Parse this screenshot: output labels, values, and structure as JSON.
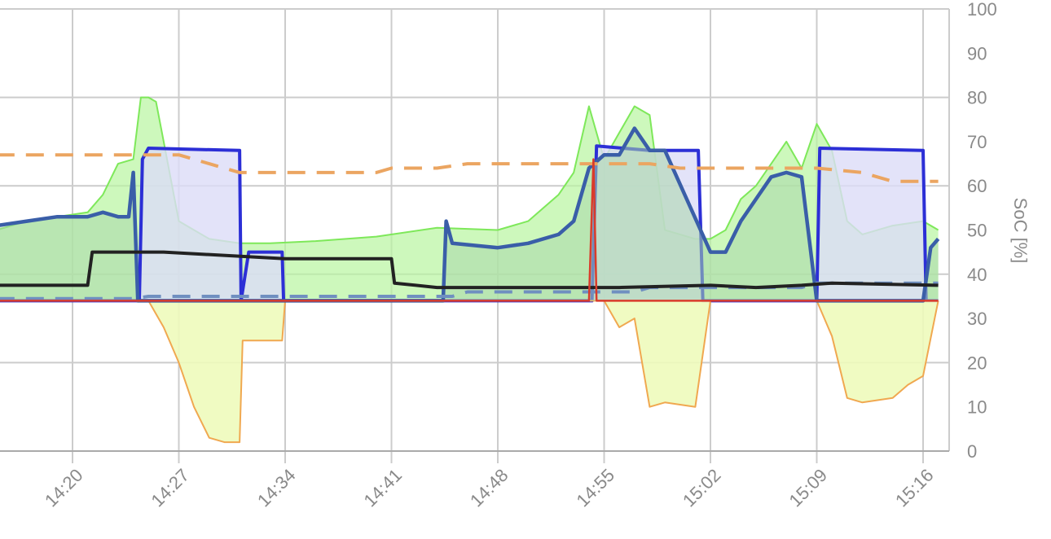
{
  "chart_data": {
    "type": "line",
    "title": "",
    "xlabel": "",
    "ylabel": "SoC [%]",
    "ylim": [
      0,
      100
    ],
    "y_ticks": [
      "0",
      "10",
      "20",
      "30",
      "40",
      "50",
      "60",
      "70",
      "80",
      "90",
      "100"
    ],
    "x_ticks": [
      "14:20",
      "14:27",
      "14:34",
      "14:41",
      "14:48",
      "14:55",
      "15:02",
      "15:09",
      "15:16"
    ],
    "x_range": [
      "14:15:15",
      "15:17:45"
    ],
    "grid": true,
    "legend": "none",
    "y_axis_position": "right",
    "colors": {
      "grid": "#cccccc",
      "axis_text": "#8a8a8a",
      "green_fill": "#b8f5a0",
      "green_line": "#7ee85a",
      "blue_fill": "#dcdcf7",
      "blue_line": "#2c2fd6",
      "steelblue_line": "#3a5ea8",
      "dark_green_fill": "#a9d7a9",
      "black_line": "#222222",
      "orange_dashed": "#eba561",
      "blue_dashed": "#6f8fc0",
      "yellow_fill": "#eefbbb",
      "orange_line": "#f0a850",
      "red_line": "#d93b2b",
      "olive_line": "#b8b25a"
    },
    "series": [
      {
        "name": "green-area",
        "style": "area",
        "x": [
          "14:15",
          "14:17",
          "14:19",
          "14:21",
          "14:22",
          "14:23",
          "14:24",
          "14:24.5",
          "14:25",
          "14:25.5",
          "14:26",
          "14:27",
          "14:29",
          "14:31",
          "14:33",
          "14:36",
          "14:40",
          "14:44",
          "14:48",
          "14:50",
          "14:52",
          "14:53",
          "14:54",
          "14:55",
          "14:56",
          "14:57",
          "14:58",
          "14:59",
          "15:00",
          "15:01",
          "15:02",
          "15:03",
          "15:04",
          "15:05",
          "15:06",
          "15:07",
          "15:08",
          "15:09",
          "15:10",
          "15:11",
          "15:12",
          "15:14",
          "15:16",
          "15:17"
        ],
        "values": [
          50,
          52,
          53,
          54,
          58,
          65,
          66,
          80,
          80,
          79,
          70,
          52,
          48,
          47,
          47,
          47.5,
          48.5,
          50.5,
          50,
          52,
          58,
          63,
          78,
          66,
          72,
          78,
          76,
          50,
          49,
          48,
          48,
          50,
          57,
          60,
          65,
          70,
          64,
          74,
          68,
          52,
          49,
          51,
          52,
          50
        ]
      },
      {
        "name": "blue-area",
        "style": "area",
        "x": [
          "14:15",
          "14:24.4",
          "14:24.6",
          "14:25",
          "14:31",
          "14:31.1",
          "14:31.6",
          "14:33.8",
          "14:33.9",
          "14:54.2",
          "14:54.5",
          "14:58",
          "15:01.2",
          "15:01.5",
          "15:09",
          "15:09.2",
          "15:16",
          "15:16.2",
          "15:17"
        ],
        "values": [
          34,
          34,
          66,
          68.5,
          68,
          34,
          45,
          45,
          34,
          34,
          69,
          68,
          68,
          34,
          34,
          68.5,
          68,
          34,
          34
        ]
      },
      {
        "name": "steelblue-line",
        "style": "line",
        "x": [
          "14:15",
          "14:17",
          "14:19",
          "14:21",
          "14:22",
          "14:23",
          "14:23.7",
          "14:24",
          "14:24.3",
          "14:30",
          "14:31.5",
          "14:34",
          "14:44.4",
          "14:44.6",
          "14:45",
          "14:48",
          "14:50",
          "14:52",
          "14:53",
          "14:54",
          "14:55",
          "14:56",
          "14:57",
          "14:58",
          "14:59",
          "15:02",
          "15:03",
          "15:04",
          "15:05",
          "15:06",
          "15:07",
          "15:08",
          "15:09",
          "15:10",
          "15:15",
          "15:16",
          "15:16.5",
          "15:17"
        ],
        "values": [
          51,
          52,
          53,
          53,
          54,
          53,
          53,
          63,
          34,
          34,
          34,
          34,
          34,
          52,
          47,
          46,
          47,
          49,
          52,
          64,
          67,
          67,
          73,
          68,
          68,
          45,
          45,
          52,
          57,
          62,
          63,
          62,
          34,
          34,
          34,
          34,
          46,
          48
        ]
      },
      {
        "name": "black-line",
        "style": "line",
        "x": [
          "14:15",
          "14:21",
          "14:21.3",
          "14:25",
          "14:26",
          "14:34",
          "14:41",
          "14:41.2",
          "14:44",
          "14:48",
          "14:54",
          "14:55",
          "14:56",
          "15:02",
          "15:05",
          "15:08",
          "15:10",
          "15:17"
        ],
        "values": [
          37.5,
          37.5,
          45,
          45,
          45,
          43.5,
          43.5,
          38,
          37,
          37,
          37,
          37,
          37,
          37.5,
          37,
          37.5,
          38,
          37.5
        ]
      },
      {
        "name": "orange-dashed",
        "style": "dashed",
        "x": [
          "14:15",
          "14:25",
          "14:27",
          "14:28",
          "14:29",
          "14:30",
          "14:31",
          "14:40",
          "14:41",
          "14:44",
          "14:46",
          "14:55",
          "14:58",
          "15:00",
          "15:02",
          "15:09",
          "15:12",
          "15:14",
          "15:17"
        ],
        "values": [
          67,
          67,
          67,
          66,
          65,
          64,
          63,
          63,
          64,
          64,
          65,
          65,
          65,
          64,
          64,
          64,
          63,
          61,
          61
        ]
      },
      {
        "name": "blue-dashed",
        "style": "dashed",
        "x": [
          "14:15",
          "14:24",
          "14:25",
          "14:45",
          "14:46",
          "14:57",
          "14:58",
          "15:08",
          "15:09",
          "15:17"
        ],
        "values": [
          34.5,
          34.5,
          35,
          35,
          36,
          36,
          37,
          37,
          38,
          38
        ]
      },
      {
        "name": "yellow-orange-area",
        "style": "area",
        "x": [
          "14:15",
          "14:25",
          "14:26",
          "14:27",
          "14:28",
          "14:29",
          "14:30",
          "14:31",
          "14:31.2",
          "14:33.8",
          "14:34",
          "14:44",
          "14:55",
          "14:56",
          "14:57",
          "14:58",
          "14:59",
          "15:01",
          "15:02",
          "15:09",
          "15:10",
          "15:11",
          "15:12",
          "15:14",
          "15:15",
          "15:16",
          "15:17"
        ],
        "values": [
          34,
          34,
          28,
          20,
          10,
          3,
          2,
          2,
          25,
          25,
          34,
          34,
          34,
          28,
          30,
          10,
          11,
          10,
          34,
          34,
          26,
          12,
          11,
          12,
          15,
          17,
          34
        ]
      },
      {
        "name": "red-line",
        "style": "line",
        "x": [
          "14:15",
          "14:54",
          "14:54.3",
          "14:54.5",
          "14:55",
          "15:17"
        ],
        "values": [
          34,
          34,
          66,
          34,
          34,
          34
        ]
      }
    ]
  },
  "axes": {
    "y_label": "SoC [%]"
  }
}
